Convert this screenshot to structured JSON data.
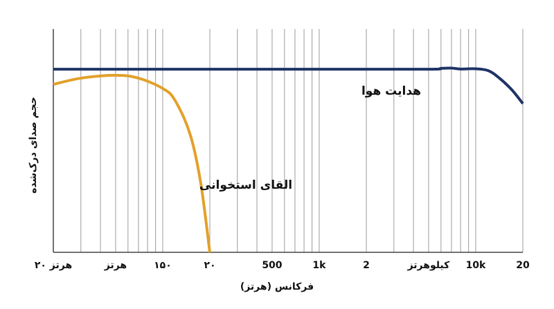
{
  "chart_data": {
    "type": "line",
    "x_label": "فرکانس (هرتز)",
    "y_label": "حجم صدای درک‌شده",
    "xscale": "log",
    "xlim": [
      20,
      20000
    ],
    "ylim": [
      0,
      100
    ],
    "xticks": [
      {
        "value": 20,
        "label": "۲۰ هرتز"
      },
      {
        "value": 50,
        "label": "هرتز"
      },
      {
        "value": 100,
        "label": "۱۵۰"
      },
      {
        "value": 200,
        "label": "۲۰"
      },
      500,
      {
        "value": 1000,
        "label": "1k"
      },
      {
        "value": 2000,
        "label": "2"
      },
      {
        "value": 5000,
        "label": "کیلوهرتز"
      },
      {
        "value": 10000,
        "label": "10k"
      },
      {
        "value": 20000,
        "label": "20"
      }
    ],
    "xgrid": [
      20,
      30,
      40,
      50,
      60,
      70,
      80,
      90,
      100,
      200,
      300,
      400,
      500,
      600,
      700,
      800,
      900,
      1000,
      2000,
      3000,
      4000,
      5000,
      6000,
      7000,
      8000,
      9000,
      10000,
      20000
    ],
    "grid": true,
    "series": [
      {
        "name": "هدایت هوا",
        "color": "#1f3366",
        "x": [
          20,
          100,
          1000,
          5000,
          6000,
          7000,
          8000,
          10000,
          12000,
          14000,
          17000,
          20000
        ],
        "values": [
          82,
          82,
          82,
          82,
          82.4,
          82.5,
          82.1,
          82.2,
          81.4,
          78.3,
          72.8,
          66.6
        ]
      },
      {
        "name": "القای استخوانی",
        "color": "#e3a02a",
        "x": [
          20,
          30,
          50,
          70,
          100,
          120,
          150,
          175,
          200
        ],
        "values": [
          75.2,
          78,
          79.3,
          78,
          73.4,
          68,
          52.6,
          31,
          0
        ]
      }
    ]
  }
}
